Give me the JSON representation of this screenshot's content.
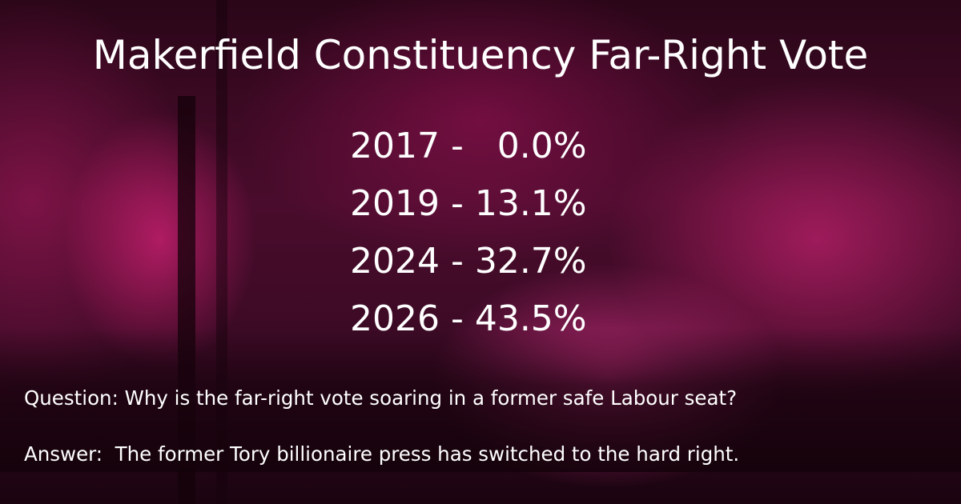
{
  "title": "Makerfield Constituency Far-Right Vote",
  "rows": [
    "2017 -   0.0%",
    "2019 - 13.1%",
    "2024 - 32.7%",
    "2026 - 43.5%"
  ],
  "question": "Question: Why is the far-right vote soaring in a former safe Labour seat?",
  "answer": "Answer:  The former Tory billionaire press has switched to the hard right."
}
